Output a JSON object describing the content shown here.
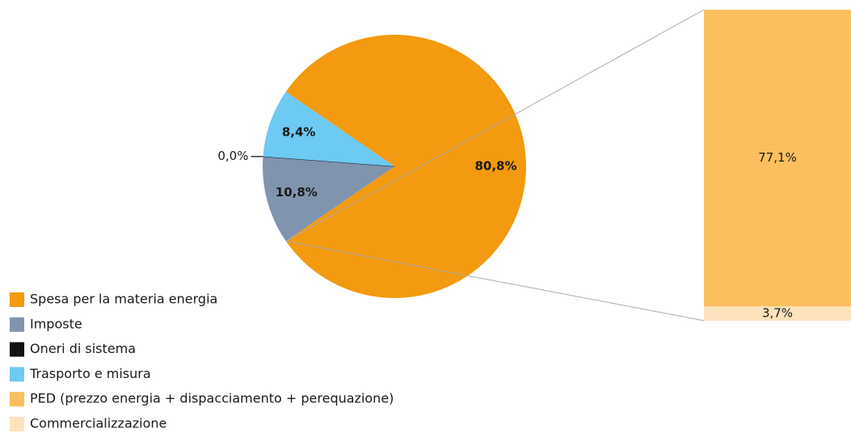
{
  "chart_data": {
    "type": "pie",
    "categories": [
      "Spesa per la materia energia",
      "Imposte",
      "Oneri di sistema",
      "Trasporto e misura"
    ],
    "values": [
      80.8,
      10.8,
      0.0,
      8.4
    ],
    "value_labels": [
      "80,8%",
      "10,8%",
      "0,0%",
      "8,4%"
    ],
    "colors": [
      "#f39a10",
      "#8094ae",
      "#111111",
      "#6dcaf2"
    ],
    "breakdown": {
      "categories": [
        "PED (prezzo energia + dispacciamento + perequazione)",
        "Commercializzazione"
      ],
      "values": [
        77.1,
        3.7
      ],
      "value_labels": [
        "77,1%",
        "3,7%"
      ],
      "colors": [
        "#fbbf5e",
        "#fde3bb"
      ]
    }
  }
}
